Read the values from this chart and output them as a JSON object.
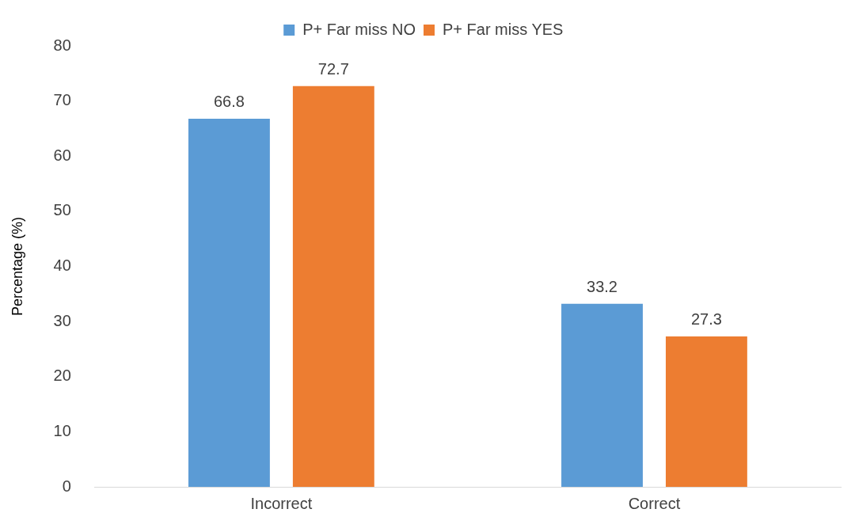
{
  "chart_data": {
    "type": "bar",
    "ylabel": "Percentage (%)",
    "categories": [
      "Incorrect",
      "Correct"
    ],
    "series": [
      {
        "name": "P+ Far miss NO",
        "color": "#5b9bd5",
        "values": [
          66.8,
          33.2
        ]
      },
      {
        "name": "P+ Far miss YES",
        "color": "#ed7d31",
        "values": [
          72.7,
          27.3
        ]
      }
    ],
    "ylim": [
      0,
      80
    ],
    "yticks": [
      0,
      10,
      20,
      30,
      40,
      50,
      60,
      70,
      80
    ],
    "grid": false,
    "legend": "top",
    "data_labels": true
  }
}
